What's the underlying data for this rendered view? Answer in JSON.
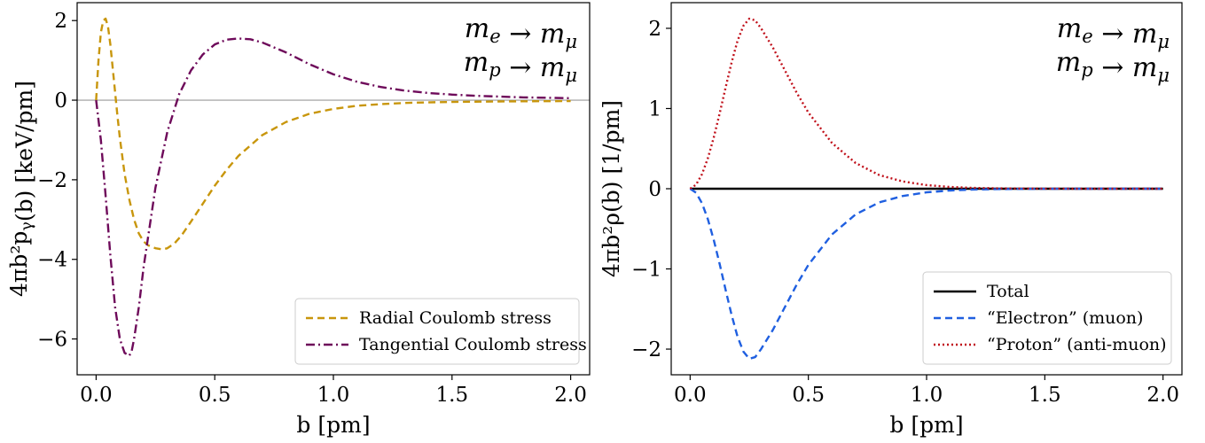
{
  "chart_data": [
    {
      "type": "line",
      "xlabel": "b [pm]",
      "ylabel": "4πb²p_γ(b) [keV/pm]",
      "xlim": [
        -0.08,
        2.08
      ],
      "ylim": [
        -6.9,
        2.45
      ],
      "xticks": [
        0.0,
        0.5,
        1.0,
        1.5,
        2.0
      ],
      "xtick_labels": [
        "0.0",
        "0.5",
        "1.0",
        "1.5",
        "2.0"
      ],
      "yticks": [
        -6,
        -4,
        -2,
        0,
        2
      ],
      "ytick_labels": [
        "−6",
        "−4",
        "−2",
        "0",
        "2"
      ],
      "annotation": [
        "m_e → m_μ",
        "m_p → m_μ"
      ],
      "legend_position": "lower-right",
      "grid": false,
      "zero_line": true,
      "series": [
        {
          "name": "Radial Coulomb stress",
          "color": "#c8960c",
          "style": "dashed",
          "x": [
            0,
            0.01,
            0.02,
            0.03,
            0.04,
            0.05,
            0.06,
            0.07,
            0.08,
            0.09,
            0.1,
            0.12,
            0.14,
            0.16,
            0.18,
            0.2,
            0.22,
            0.25,
            0.28,
            0.3,
            0.33,
            0.36,
            0.4,
            0.45,
            0.5,
            0.55,
            0.6,
            0.7,
            0.8,
            0.9,
            1.0,
            1.1,
            1.2,
            1.3,
            1.4,
            1.5,
            1.6,
            1.7,
            1.8,
            1.9,
            2.0
          ],
          "values": [
            0,
            1.0,
            1.7,
            2.0,
            2.05,
            1.85,
            1.4,
            0.8,
            0.2,
            -0.4,
            -0.95,
            -1.85,
            -2.5,
            -3.0,
            -3.35,
            -3.55,
            -3.65,
            -3.72,
            -3.75,
            -3.72,
            -3.6,
            -3.4,
            -3.05,
            -2.6,
            -2.15,
            -1.75,
            -1.4,
            -0.88,
            -0.55,
            -0.34,
            -0.22,
            -0.14,
            -0.1,
            -0.07,
            -0.055,
            -0.045,
            -0.038,
            -0.032,
            -0.028,
            -0.025,
            -0.022
          ]
        },
        {
          "name": "Tangential Coulomb stress",
          "color": "#6e0a5a",
          "style": "dashdot",
          "x": [
            0,
            0.02,
            0.04,
            0.06,
            0.08,
            0.1,
            0.12,
            0.14,
            0.15,
            0.16,
            0.18,
            0.2,
            0.25,
            0.3,
            0.35,
            0.4,
            0.45,
            0.5,
            0.55,
            0.6,
            0.65,
            0.7,
            0.8,
            0.9,
            1.0,
            1.1,
            1.2,
            1.3,
            1.4,
            1.5,
            1.6,
            1.7,
            1.8,
            1.9,
            2.0
          ],
          "values": [
            0,
            -1.0,
            -2.4,
            -3.9,
            -5.2,
            -6.0,
            -6.35,
            -6.42,
            -6.3,
            -6.0,
            -5.2,
            -4.2,
            -2.2,
            -0.8,
            0.15,
            0.75,
            1.15,
            1.4,
            1.52,
            1.55,
            1.53,
            1.45,
            1.2,
            0.9,
            0.65,
            0.46,
            0.33,
            0.24,
            0.18,
            0.14,
            0.11,
            0.09,
            0.07,
            0.06,
            0.05
          ]
        }
      ]
    },
    {
      "type": "line",
      "xlabel": "b [pm]",
      "ylabel": "4πb²ρ(b) [1/pm]",
      "xlim": [
        -0.08,
        2.08
      ],
      "ylim": [
        -2.32,
        2.32
      ],
      "xticks": [
        0.0,
        0.5,
        1.0,
        1.5,
        2.0
      ],
      "xtick_labels": [
        "0.0",
        "0.5",
        "1.0",
        "1.5",
        "2.0"
      ],
      "yticks": [
        -2,
        -1,
        0,
        1,
        2
      ],
      "ytick_labels": [
        "−2",
        "−1",
        "0",
        "1",
        "2"
      ],
      "annotation": [
        "m_e → m_μ",
        "m_p → m_μ"
      ],
      "legend_position": "lower-right",
      "grid": false,
      "series": [
        {
          "name": "Total",
          "color": "#000000",
          "style": "solid",
          "x": [
            0,
            2.0
          ],
          "values": [
            0,
            0
          ]
        },
        {
          "name": "“Electron” (muon)",
          "color": "#1f5fe0",
          "style": "dashed",
          "x": [
            0,
            0.025,
            0.05,
            0.075,
            0.1,
            0.125,
            0.15,
            0.175,
            0.2,
            0.225,
            0.25,
            0.275,
            0.3,
            0.35,
            0.4,
            0.45,
            0.5,
            0.6,
            0.7,
            0.8,
            0.9,
            1.0,
            1.1,
            1.2,
            1.3,
            1.4,
            1.5,
            1.6,
            1.8,
            2.0
          ],
          "values": [
            0,
            -0.05,
            -0.18,
            -0.38,
            -0.64,
            -0.94,
            -1.26,
            -1.57,
            -1.84,
            -2.03,
            -2.12,
            -2.1,
            -2.0,
            -1.76,
            -1.48,
            -1.2,
            -0.95,
            -0.57,
            -0.32,
            -0.17,
            -0.09,
            -0.045,
            -0.022,
            -0.01,
            -0.005,
            -0.002,
            -0.001,
            0,
            0,
            0
          ]
        },
        {
          "name": "“Proton” (anti-muon)",
          "color": "#c0101a",
          "style": "dotted",
          "x": [
            0,
            0.025,
            0.05,
            0.075,
            0.1,
            0.125,
            0.15,
            0.175,
            0.2,
            0.225,
            0.25,
            0.275,
            0.3,
            0.35,
            0.4,
            0.45,
            0.5,
            0.6,
            0.7,
            0.8,
            0.9,
            1.0,
            1.1,
            1.2,
            1.3,
            1.4,
            1.5,
            1.6,
            1.8,
            2.0
          ],
          "values": [
            0,
            0.05,
            0.18,
            0.38,
            0.64,
            0.94,
            1.26,
            1.57,
            1.84,
            2.03,
            2.12,
            2.1,
            2.0,
            1.76,
            1.48,
            1.2,
            0.95,
            0.57,
            0.32,
            0.17,
            0.09,
            0.045,
            0.022,
            0.01,
            0.005,
            0.002,
            0.001,
            0,
            0,
            0
          ]
        }
      ]
    }
  ]
}
